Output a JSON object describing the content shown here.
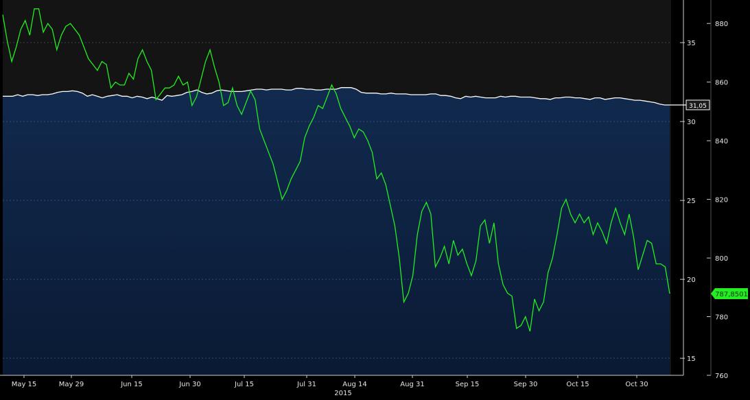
{
  "chart_data": {
    "type": "area+line",
    "x_ticks": [
      "May 15",
      "May 29",
      "Jun 15",
      "Jun 30",
      "Jul 15",
      "Jul 31",
      "Aug 14",
      "Aug 31",
      "Sep 15",
      "Sep 30",
      "Oct 15",
      "Oct 30"
    ],
    "x_year_label": "2015",
    "left_axis": {
      "ticks": [
        15,
        20,
        25,
        30,
        35
      ],
      "range": [
        13.92,
        37.7
      ]
    },
    "right_axis": {
      "ticks": [
        760,
        780,
        800,
        820,
        840,
        860,
        880
      ],
      "range": [
        760,
        888
      ]
    },
    "series": [
      {
        "axis": "left",
        "style": "area",
        "color": "#ffffff",
        "fill": "#0f2a4d",
        "last_value_label": "31,05",
        "values": [
          31.6,
          31.6,
          31.6,
          31.7,
          31.6,
          31.7,
          31.7,
          31.65,
          31.7,
          31.7,
          31.75,
          31.85,
          31.9,
          31.9,
          31.95,
          31.9,
          31.8,
          31.6,
          31.7,
          31.6,
          31.5,
          31.6,
          31.65,
          31.7,
          31.6,
          31.6,
          31.5,
          31.6,
          31.55,
          31.45,
          31.55,
          31.45,
          31.35,
          31.65,
          31.6,
          31.65,
          31.7,
          31.85,
          31.9,
          32,
          31.85,
          31.75,
          31.8,
          31.95,
          32,
          31.95,
          31.9,
          31.9,
          31.9,
          31.95,
          32,
          32.05,
          32.05,
          32,
          32.05,
          32.05,
          32.05,
          32,
          32,
          32.1,
          32.1,
          32.05,
          32.05,
          32,
          32,
          32.05,
          32.05,
          32.05,
          32.15,
          32.15,
          32.15,
          32.05,
          31.85,
          31.8,
          31.8,
          31.8,
          31.75,
          31.75,
          31.8,
          31.75,
          31.75,
          31.75,
          31.7,
          31.7,
          31.7,
          31.7,
          31.75,
          31.75,
          31.65,
          31.65,
          31.6,
          31.5,
          31.45,
          31.6,
          31.55,
          31.6,
          31.55,
          31.5,
          31.5,
          31.5,
          31.6,
          31.55,
          31.6,
          31.6,
          31.55,
          31.55,
          31.55,
          31.5,
          31.45,
          31.45,
          31.4,
          31.5,
          31.5,
          31.55,
          31.55,
          31.5,
          31.5,
          31.45,
          31.4,
          31.5,
          31.5,
          31.4,
          31.45,
          31.5,
          31.5,
          31.45,
          31.4,
          31.35,
          31.35,
          31.3,
          31.25,
          31.2,
          31.1,
          31.05,
          31.05
        ]
      },
      {
        "axis": "right",
        "style": "line",
        "color": "#22ee22",
        "last_value_label": "787,8501",
        "values": [
          883,
          874,
          867,
          872,
          878,
          881,
          876,
          885,
          885,
          877,
          880,
          878,
          871,
          876,
          879,
          880,
          878,
          876,
          872,
          868,
          866,
          864,
          867,
          866,
          858,
          860,
          859,
          859,
          863,
          861,
          868,
          871,
          867,
          864,
          854,
          856,
          858,
          858,
          859,
          862,
          859,
          860,
          852,
          855,
          861,
          867,
          871,
          865,
          860,
          852,
          853,
          858,
          852,
          849,
          853,
          857,
          854,
          844,
          840,
          836,
          832,
          826,
          820,
          823,
          827,
          830,
          833,
          841,
          845,
          848,
          852,
          851,
          855,
          859,
          856,
          851,
          848,
          845,
          841,
          844,
          843,
          840,
          836,
          827,
          829,
          825,
          818,
          811,
          800,
          785,
          788,
          794,
          808,
          816,
          819,
          815,
          797,
          800,
          804,
          798,
          806,
          801,
          803,
          798,
          794,
          799,
          811,
          813,
          805,
          812,
          798,
          791,
          788,
          787,
          776,
          777,
          780,
          775,
          786,
          782,
          785,
          795,
          800,
          808,
          817,
          820,
          815,
          812,
          815,
          812,
          814,
          808,
          812,
          809,
          805,
          812,
          817,
          812,
          808,
          815,
          807,
          796,
          801,
          806,
          805,
          798,
          798,
          797,
          787.85
        ]
      }
    ]
  }
}
